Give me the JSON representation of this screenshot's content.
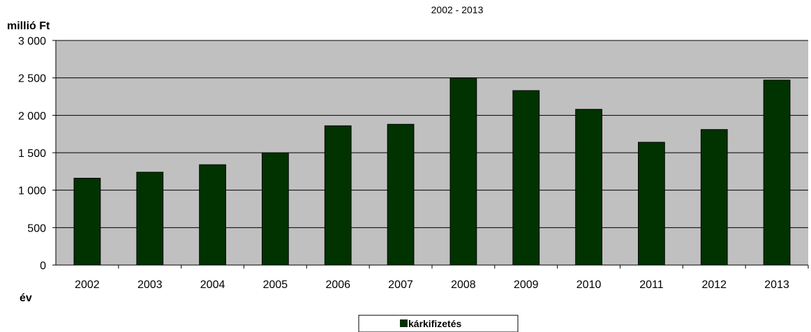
{
  "chart_data": {
    "type": "bar",
    "title": "2002 - 2013",
    "ylabel": "millió Ft",
    "xlabel": "év",
    "categories": [
      "2002",
      "2003",
      "2004",
      "2005",
      "2006",
      "2007",
      "2008",
      "2009",
      "2010",
      "2011",
      "2012",
      "2013"
    ],
    "series": [
      {
        "name": "kárkifizetés",
        "color": "#003300",
        "values": [
          1160,
          1240,
          1340,
          1500,
          1860,
          1880,
          2500,
          2330,
          2080,
          1640,
          1810,
          2470
        ]
      }
    ],
    "ylim": [
      0,
      3000
    ],
    "yticks": [
      0,
      500,
      1000,
      1500,
      2000,
      2500,
      3000
    ],
    "ytick_labels": [
      "0",
      "500",
      "1 000",
      "1 500",
      "2 000",
      "2 500",
      "3 000"
    ],
    "grid": true,
    "plot_background": "#c0c0c0",
    "legend_position": "bottom"
  }
}
